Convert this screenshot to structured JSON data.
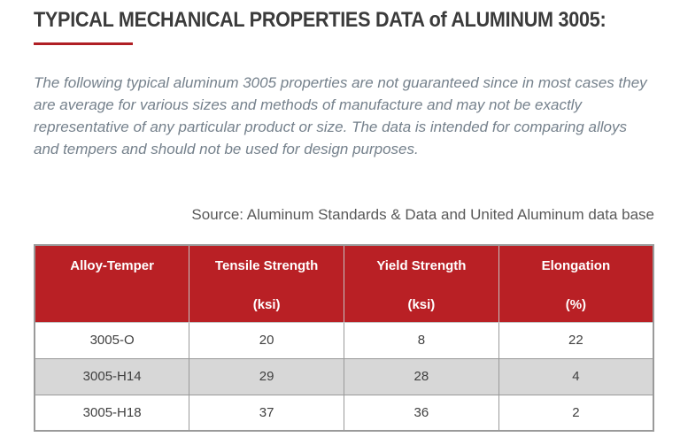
{
  "page": {
    "title": "TYPICAL MECHANICAL PROPERTIES DATA of ALUMINUM 3005:",
    "intro": "The following typical aluminum 3005 properties are not guaranteed since in most cases they are average for various sizes and methods of manufacture and may not be exactly representative of any particular product or size. The data is intended for comparing alloys and tempers and should not be used for design purposes.",
    "source_note": "Source: Aluminum Standards & Data and United Aluminum data base"
  },
  "colors": {
    "accent_red": "#b92025",
    "underline_red": "#b01f24",
    "header_bg": "#b92025",
    "header_text": "#ffffff",
    "row_alt_bg": "#d7d7d7",
    "row_bg": "#ffffff",
    "table_border": "#9a9a9a",
    "title_text": "#3b3b3b",
    "intro_text": "#75818c",
    "source_text": "#595959",
    "cell_text": "#3f3f3f"
  },
  "table": {
    "headers": [
      {
        "label": "Alloy-Temper",
        "unit": ""
      },
      {
        "label": "Tensile Strength",
        "unit": "(ksi)"
      },
      {
        "label": "Yield Strength",
        "unit": "(ksi)"
      },
      {
        "label": "Elongation",
        "unit": "(%)"
      }
    ],
    "rows": [
      [
        "3005-O",
        "20",
        "8",
        "22"
      ],
      [
        "3005-H14",
        "29",
        "28",
        "4"
      ],
      [
        "3005-H18",
        "37",
        "36",
        "2"
      ]
    ]
  },
  "chart_data": {
    "type": "table",
    "title": "Typical Mechanical Properties Data of Aluminum 3005",
    "columns": [
      "Alloy-Temper",
      "Tensile Strength (ksi)",
      "Yield Strength (ksi)",
      "Elongation (%)"
    ],
    "rows": [
      {
        "alloy_temper": "3005-O",
        "tensile_strength_ksi": 20,
        "yield_strength_ksi": 8,
        "elongation_pct": 22
      },
      {
        "alloy_temper": "3005-H14",
        "tensile_strength_ksi": 29,
        "yield_strength_ksi": 28,
        "elongation_pct": 4
      },
      {
        "alloy_temper": "3005-H18",
        "tensile_strength_ksi": 37,
        "yield_strength_ksi": 36,
        "elongation_pct": 2
      }
    ]
  }
}
